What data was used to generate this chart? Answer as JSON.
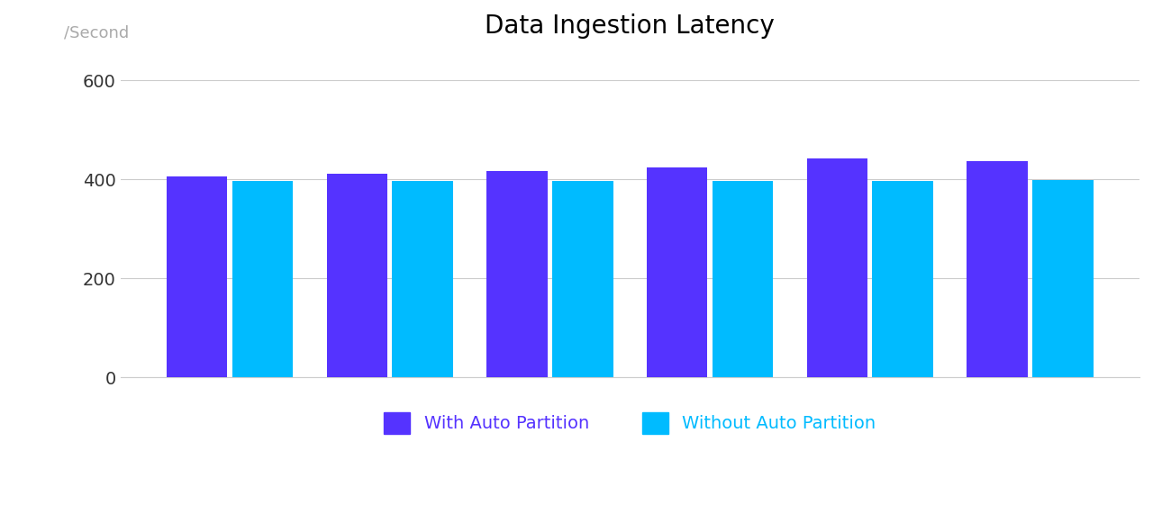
{
  "title": "Data Ingestion Latency",
  "ylabel": "/Second",
  "with_auto_partition": [
    407,
    412,
    417,
    425,
    442,
    437
  ],
  "without_auto_partition": [
    397,
    397,
    397,
    397,
    397,
    399
  ],
  "color_with": "#5533FF",
  "color_without": "#00BBFF",
  "ylim": [
    0,
    660
  ],
  "yticks": [
    0,
    200,
    400,
    600
  ],
  "n_groups": 6,
  "legend_with": "With Auto Partition",
  "legend_without": "Without Auto Partition",
  "background_color": "#ffffff",
  "grid_color": "#cccccc",
  "title_fontsize": 20,
  "ylabel_fontsize": 13,
  "tick_fontsize": 14,
  "legend_fontsize": 14
}
